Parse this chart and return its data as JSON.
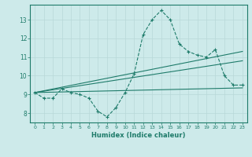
{
  "x": [
    0,
    1,
    2,
    3,
    4,
    5,
    6,
    7,
    8,
    9,
    10,
    11,
    12,
    13,
    14,
    15,
    16,
    17,
    18,
    19,
    20,
    21,
    22,
    23
  ],
  "line_main": [
    9.1,
    8.8,
    8.8,
    9.3,
    9.1,
    9.0,
    8.8,
    8.1,
    7.8,
    8.3,
    9.1,
    10.1,
    12.2,
    13.0,
    13.5,
    13.0,
    11.7,
    11.3,
    11.1,
    11.0,
    11.4,
    10.0,
    9.5,
    9.5
  ],
  "trend1_x": [
    0,
    23
  ],
  "trend1_y": [
    9.1,
    9.35
  ],
  "trend2_x": [
    0,
    23
  ],
  "trend2_y": [
    9.1,
    10.8
  ],
  "trend3_x": [
    0,
    23
  ],
  "trend3_y": [
    9.1,
    11.3
  ],
  "line_color": "#1e7b6a",
  "bg_color": "#cdeaea",
  "xlabel": "Humidex (Indice chaleur)",
  "ylim": [
    7.5,
    13.8
  ],
  "xlim": [
    -0.5,
    23.5
  ],
  "yticks": [
    8,
    9,
    10,
    11,
    12,
    13
  ],
  "xticks": [
    0,
    1,
    2,
    3,
    4,
    5,
    6,
    7,
    8,
    9,
    10,
    11,
    12,
    13,
    14,
    15,
    16,
    17,
    18,
    19,
    20,
    21,
    22,
    23
  ],
  "grid_color": "#b8d8d8"
}
